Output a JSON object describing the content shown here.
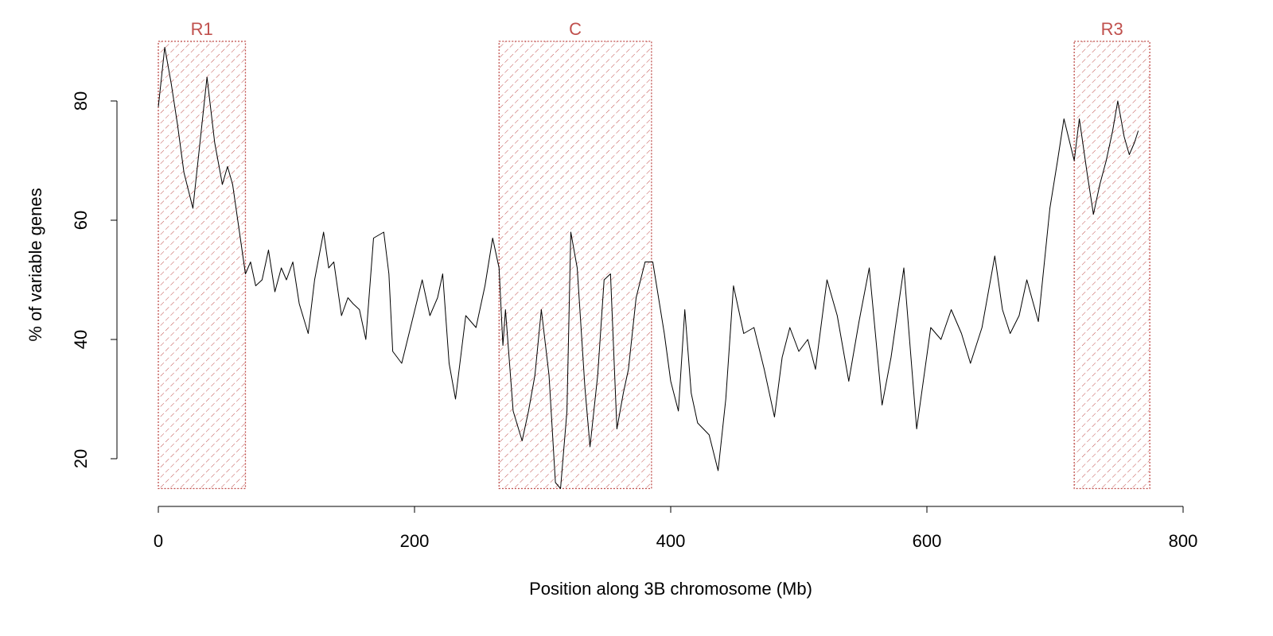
{
  "chart_data": {
    "type": "line",
    "xlabel": "Position along 3B chromosome (Mb)",
    "ylabel": "% of variable genes",
    "xlim": [
      0,
      800
    ],
    "ylim": [
      15,
      90
    ],
    "xticks": [
      0,
      200,
      400,
      600,
      800
    ],
    "yticks": [
      20,
      40,
      60,
      80
    ],
    "color": "#000000",
    "region_color": "#c0504d",
    "regions": [
      {
        "label": "R1",
        "x": [
          0,
          68
        ]
      },
      {
        "label": "C",
        "x": [
          266,
          385
        ]
      },
      {
        "label": "R3",
        "x": [
          715,
          774
        ]
      }
    ],
    "x": [
      0,
      5,
      10,
      15,
      20,
      27,
      32,
      38,
      44,
      50,
      54,
      58,
      62,
      68,
      72,
      76,
      81,
      86,
      91,
      96,
      100,
      105,
      110,
      117,
      122,
      129,
      133,
      137,
      143,
      148,
      152,
      157,
      162,
      168,
      176,
      180,
      183,
      190,
      198,
      206,
      212,
      218,
      222,
      227,
      232,
      240,
      248,
      255,
      261,
      266,
      269,
      271,
      277,
      284,
      289,
      294,
      299,
      305,
      310,
      314,
      319,
      322,
      327,
      333,
      337,
      343,
      348,
      353,
      358,
      363,
      367,
      373,
      380,
      386,
      395,
      400,
      406,
      411,
      416,
      421,
      430,
      437,
      443,
      449,
      457,
      465,
      473,
      481,
      487,
      493,
      500,
      507,
      513,
      522,
      530,
      539,
      547,
      555,
      565,
      572,
      582,
      592,
      603,
      611,
      619,
      627,
      634,
      643,
      653,
      659,
      665,
      672,
      678,
      687,
      696,
      702,
      707,
      715,
      719,
      725,
      730,
      735,
      740,
      745,
      749,
      754,
      758,
      762,
      765
    ],
    "values": [
      79,
      89,
      83,
      76,
      68,
      62,
      72,
      84,
      73,
      66,
      69,
      66,
      60,
      51,
      53,
      49,
      50,
      55,
      48,
      52,
      50,
      53,
      46,
      41,
      50,
      58,
      52,
      53,
      44,
      47,
      46,
      45,
      40,
      57,
      58,
      51,
      38,
      36,
      43,
      50,
      44,
      47,
      51,
      36,
      30,
      44,
      42,
      49,
      57,
      52,
      39,
      45,
      28,
      23,
      28,
      34,
      45,
      34,
      16,
      15,
      28,
      58,
      52,
      32,
      22,
      34,
      50,
      51,
      25,
      31,
      35,
      47,
      53,
      53,
      41,
      33,
      28,
      45,
      31,
      26,
      24,
      18,
      30,
      49,
      41,
      42,
      35,
      27,
      37,
      42,
      38,
      40,
      35,
      50,
      44,
      33,
      43,
      52,
      29,
      37,
      52,
      25,
      42,
      40,
      45,
      41,
      36,
      42,
      54,
      45,
      41,
      44,
      50,
      43,
      62,
      70,
      77,
      70,
      77,
      68,
      61,
      66,
      70,
      75,
      80,
      74,
      71,
      73,
      75
    ]
  }
}
